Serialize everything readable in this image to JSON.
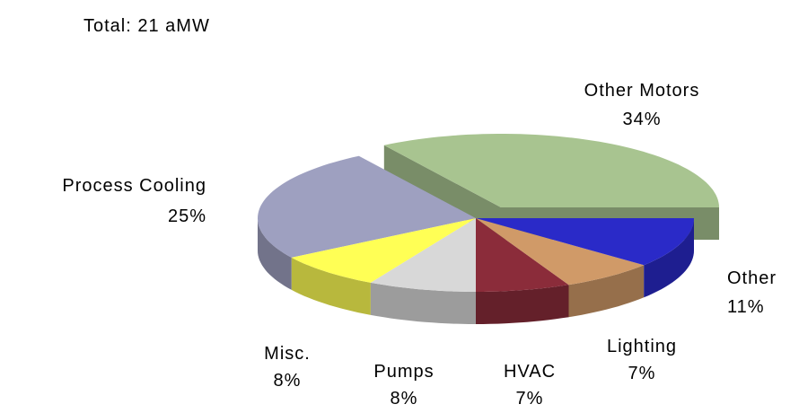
{
  "chart_data": {
    "type": "pie",
    "title": "Total: 21 aMW",
    "categories": [
      "Other Motors",
      "Process Cooling",
      "Misc.",
      "Pumps",
      "HVAC",
      "Lighting",
      "Other"
    ],
    "values": [
      34,
      25,
      8,
      8,
      7,
      7,
      11
    ],
    "value_labels": [
      "34%",
      "25%",
      "8%",
      "8%",
      "7%",
      "7%",
      "11%"
    ],
    "colors": [
      "#a8c490",
      "#9ea0c0",
      "#ffff55",
      "#d8d8d8",
      "#8b2c3a",
      "#d09a68",
      "#2a2ac8"
    ],
    "exploded": [
      "Other Motors"
    ]
  }
}
